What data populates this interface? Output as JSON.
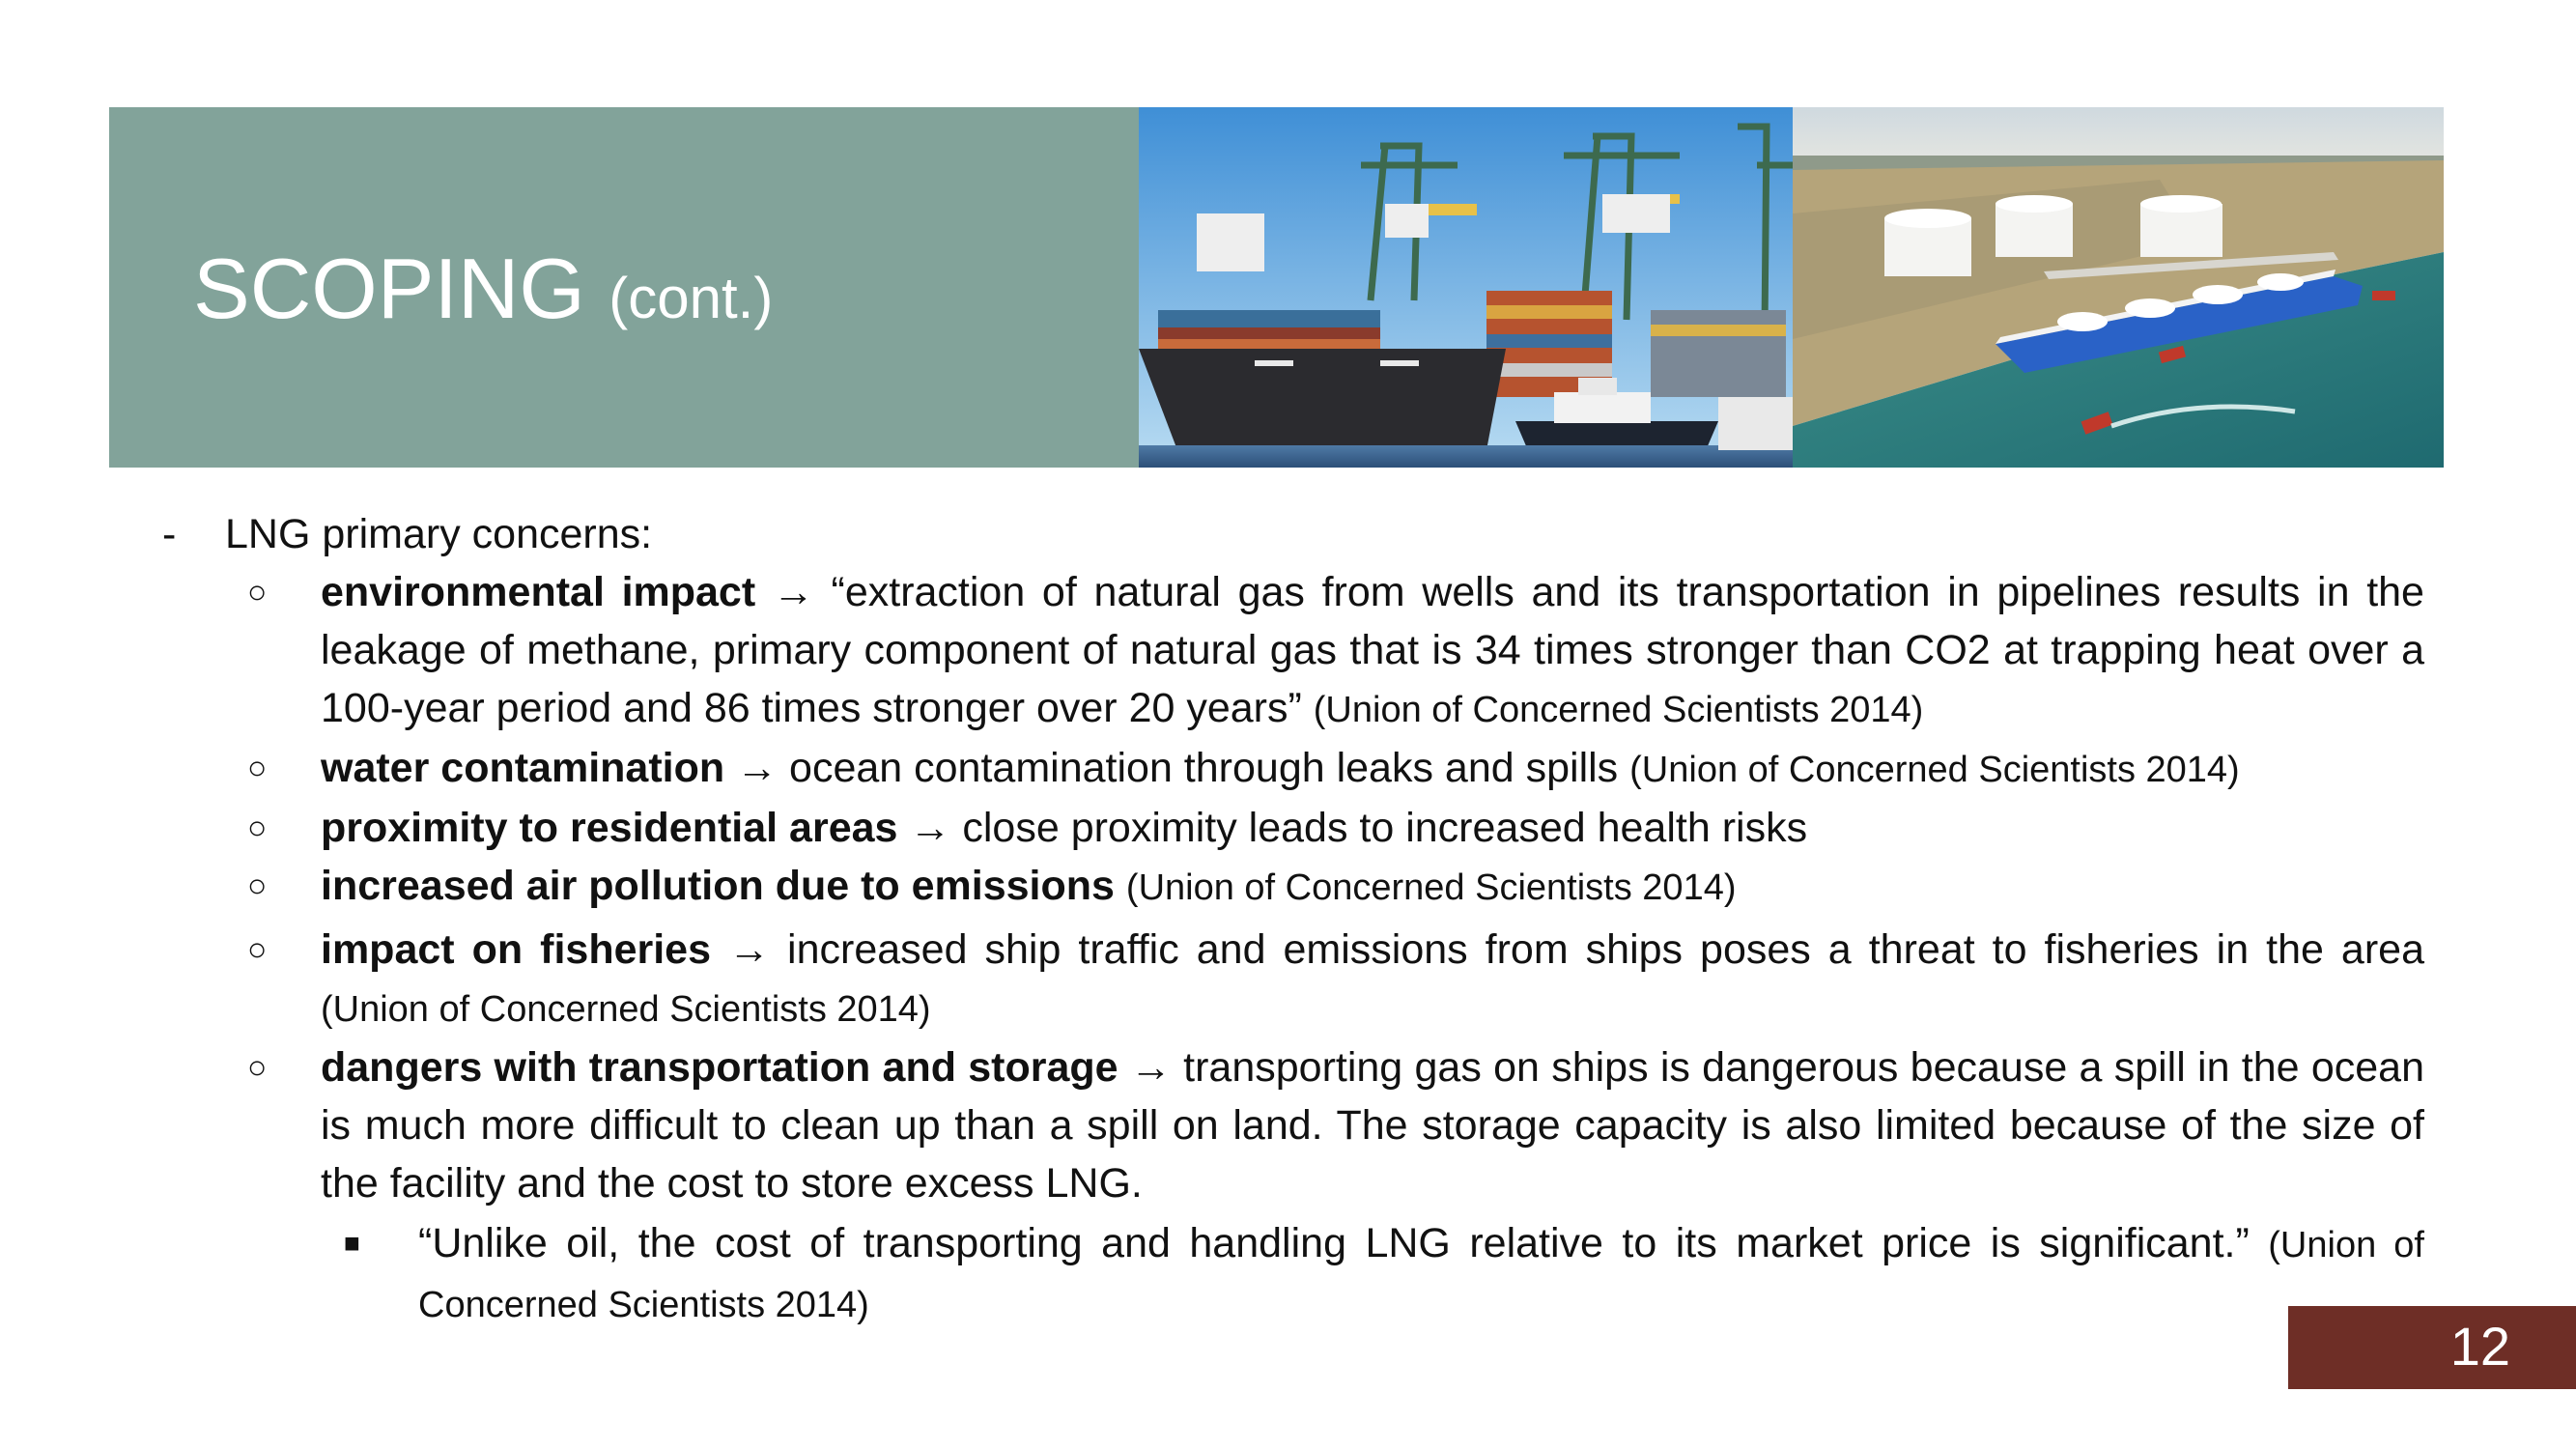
{
  "slide": {
    "title": "SCOPING",
    "title_suffix": "(cont.)",
    "page_number": "12",
    "colors": {
      "header_block": "#82a39a",
      "page_number_box": "#6e2e26",
      "title_text": "#ffffff"
    }
  },
  "images": [
    {
      "name": "container-ship-port-photo",
      "icon": "photo"
    },
    {
      "name": "lng-terminal-tanker-photo",
      "icon": "photo"
    }
  ],
  "content": {
    "bullet_dash": "-",
    "bullet_circle": "○",
    "bullet_square": "■",
    "intro": "LNG primary concerns:",
    "items": [
      {
        "term": "environmental impact",
        "arrow": "→",
        "text": "“extraction of natural gas from wells and its transportation in pipelines results in the leakage of methane, primary component of natural gas that is 34 times stronger than CO2 at trapping heat over a 100-year period and 86 times stronger over 20 years”",
        "source": "(Union of Concerned Scientists 2014)"
      },
      {
        "term": "water contamination",
        "arrow": "→",
        "text": "ocean contamination through leaks and spills",
        "source": "(Union of Concerned Scientists 2014)"
      },
      {
        "term": "proximity to residential areas",
        "arrow": "→",
        "text": "close proximity leads to increased health risks"
      },
      {
        "term": "increased air pollution due to emissions",
        "source": "(Union of Concerned Scientists 2014)"
      },
      {
        "term": "impact on fisheries",
        "arrow": "→",
        "text": "increased ship traffic and emissions from ships poses a threat to fisheries in the area",
        "source": "(Union of Concerned Scientists 2014)"
      },
      {
        "term": "dangers with transportation and storage",
        "arrow": "→",
        "text": "transporting gas on ships is dangerous because a spill in the ocean is much more difficult to clean up than a spill on land. The storage capacity is also limited because of the size of the facility and the cost to store excess LNG.",
        "subitem": {
          "text": "“Unlike oil, the cost of transporting and handling LNG relative to its market price is significant.”",
          "source": "(Union of Concerned Scientists 2014)"
        }
      }
    ]
  }
}
